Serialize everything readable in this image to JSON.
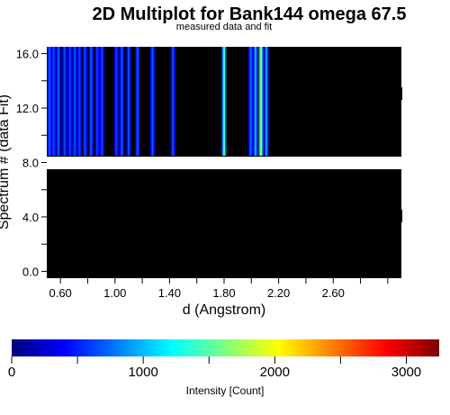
{
  "chart_data": {
    "type": "heatmap",
    "title": "2D Multiplot for Bank144 omega 67.5",
    "subtitle": "measured data and fit",
    "xlabel": "d (Angstrom)",
    "ylabel": "Spectrum # (data Fit)",
    "xlim": [
      0.5,
      3.1
    ],
    "ylim": [
      -0.5,
      16.5
    ],
    "x_ticks": [
      0.6,
      0.8,
      1.0,
      1.2,
      1.4,
      1.6,
      1.8,
      2.0,
      2.2,
      2.4,
      2.6,
      2.8,
      3.0
    ],
    "x_tick_labels": [
      "0.60",
      "",
      "1.00",
      "",
      "1.40",
      "",
      "1.80",
      "",
      "2.20",
      "",
      "2.60",
      "",
      ""
    ],
    "y_ticks": [
      0,
      2,
      4,
      6,
      8,
      10,
      12,
      14,
      16
    ],
    "y_tick_labels": [
      "0.0",
      "",
      "4.0",
      "",
      "8.0",
      "",
      "12.0",
      "",
      "16.0"
    ],
    "rows": [
      {
        "name": "measured",
        "y_range": [
          8.5,
          16.5
        ],
        "background": 0
      },
      {
        "name": "fit",
        "y_range": [
          -0.5,
          7.5
        ],
        "background": 0
      }
    ],
    "gap": [
      7.5,
      8.5
    ],
    "peaks": [
      {
        "d": 0.52,
        "intensity": 700
      },
      {
        "d": 0.55,
        "intensity": 650
      },
      {
        "d": 0.585,
        "intensity": 700
      },
      {
        "d": 0.63,
        "intensity": 650
      },
      {
        "d": 0.67,
        "intensity": 600
      },
      {
        "d": 0.705,
        "intensity": 650
      },
      {
        "d": 0.74,
        "intensity": 600
      },
      {
        "d": 0.78,
        "intensity": 650
      },
      {
        "d": 0.825,
        "intensity": 700
      },
      {
        "d": 0.87,
        "intensity": 600
      },
      {
        "d": 0.905,
        "intensity": 650
      },
      {
        "d": 1.01,
        "intensity": 600
      },
      {
        "d": 1.05,
        "intensity": 700
      },
      {
        "d": 1.1,
        "intensity": 650
      },
      {
        "d": 1.165,
        "intensity": 700
      },
      {
        "d": 1.275,
        "intensity": 700
      },
      {
        "d": 1.425,
        "intensity": 650
      },
      {
        "d": 1.8,
        "intensity": 1400
      },
      {
        "d": 1.995,
        "intensity": 750
      },
      {
        "d": 2.03,
        "intensity": 1000
      },
      {
        "d": 2.07,
        "intensity": 1650
      },
      {
        "d": 2.11,
        "intensity": 900
      }
    ],
    "colorbar": {
      "label": "Intensity [Count]",
      "range": [
        0,
        3250
      ],
      "ticks": [
        0,
        500,
        1000,
        1500,
        2000,
        2500,
        3000
      ],
      "tick_labels": [
        "0",
        "",
        "1000",
        "",
        "2000",
        "",
        "3000"
      ],
      "colormap": [
        "#00007f",
        "#0000ff",
        "#007fff",
        "#00ffff",
        "#7fff7f",
        "#ffff00",
        "#ff7f00",
        "#ff0000",
        "#7f0000"
      ]
    }
  }
}
